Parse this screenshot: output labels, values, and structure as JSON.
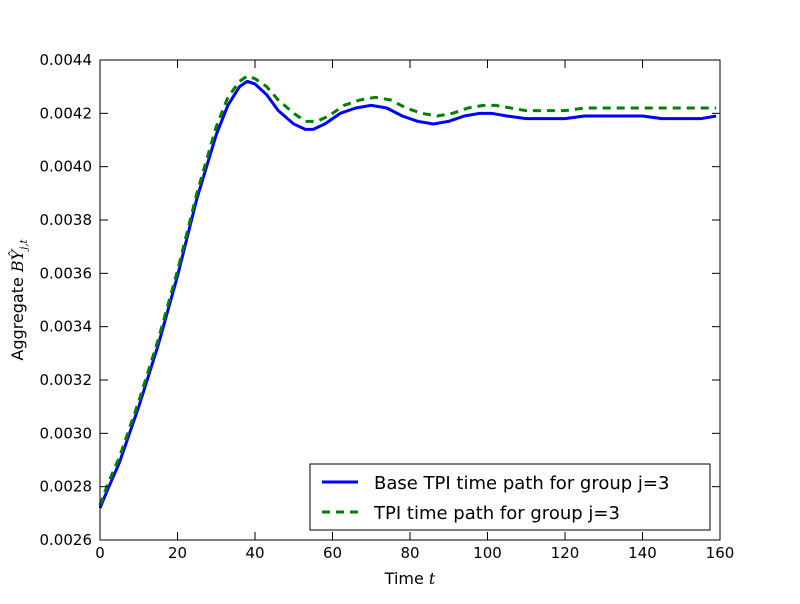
{
  "chart_data": {
    "type": "line",
    "title": "",
    "xlabel": "Time",
    "xlabel_math": "t",
    "ylabel": "Aggregate",
    "ylabel_math": "BŶ",
    "ylabel_math_sub": "j,t",
    "xlim": [
      0,
      160
    ],
    "ylim": [
      0.0026,
      0.0044
    ],
    "xticks": [
      0,
      20,
      40,
      60,
      80,
      100,
      120,
      140,
      160
    ],
    "yticks": [
      0.0026,
      0.0028,
      0.003,
      0.0032,
      0.0034,
      0.0036,
      0.0038,
      0.004,
      0.0042,
      0.0044
    ],
    "ytick_labels": [
      "0.0026",
      "0.0028",
      "0.0030",
      "0.0032",
      "0.0034",
      "0.0036",
      "0.0038",
      "0.0040",
      "0.0042",
      "0.0044"
    ],
    "xtick_labels": [
      "0",
      "20",
      "40",
      "60",
      "80",
      "100",
      "120",
      "140",
      "160"
    ],
    "grid": false,
    "legend_position": "lower-right",
    "series": [
      {
        "name": "Base TPI time path for group j=3",
        "color": "#0000ff",
        "style": "solid",
        "x": [
          0,
          2,
          5,
          10,
          15,
          20,
          25,
          30,
          33,
          36,
          38,
          40,
          43,
          46,
          50,
          53,
          55,
          58,
          62,
          66,
          70,
          74,
          78,
          82,
          86,
          90,
          94,
          98,
          101,
          105,
          110,
          115,
          120,
          125,
          130,
          135,
          140,
          145,
          150,
          155,
          159
        ],
        "y": [
          0.00272,
          0.00279,
          0.00289,
          0.0031,
          0.00333,
          0.00359,
          0.00388,
          0.00412,
          0.00423,
          0.0043,
          0.00432,
          0.00431,
          0.00427,
          0.00421,
          0.00416,
          0.00414,
          0.00414,
          0.00416,
          0.0042,
          0.00422,
          0.00423,
          0.00422,
          0.00419,
          0.00417,
          0.00416,
          0.00417,
          0.00419,
          0.0042,
          0.0042,
          0.00419,
          0.00418,
          0.00418,
          0.00418,
          0.00419,
          0.00419,
          0.00419,
          0.00419,
          0.00418,
          0.00418,
          0.00418,
          0.00419
        ]
      },
      {
        "name": "TPI time path for group j=3",
        "color": "#008000",
        "style": "dashed",
        "x": [
          0,
          2,
          5,
          10,
          15,
          20,
          25,
          30,
          33,
          36,
          38,
          40,
          43,
          46,
          50,
          53,
          56,
          59,
          63,
          67,
          71,
          75,
          79,
          83,
          87,
          91,
          95,
          99,
          102,
          106,
          110,
          115,
          120,
          125,
          130,
          135,
          140,
          145,
          150,
          155,
          159
        ],
        "y": [
          0.00273,
          0.00281,
          0.00291,
          0.00312,
          0.00335,
          0.00361,
          0.0039,
          0.00415,
          0.00426,
          0.00432,
          0.00434,
          0.00433,
          0.0043,
          0.00425,
          0.0042,
          0.00417,
          0.00417,
          0.00419,
          0.00423,
          0.00425,
          0.00426,
          0.00425,
          0.00422,
          0.0042,
          0.00419,
          0.0042,
          0.00422,
          0.00423,
          0.00423,
          0.00422,
          0.00421,
          0.00421,
          0.00421,
          0.00422,
          0.00422,
          0.00422,
          0.00422,
          0.00422,
          0.00422,
          0.00422,
          0.00422
        ]
      }
    ]
  }
}
